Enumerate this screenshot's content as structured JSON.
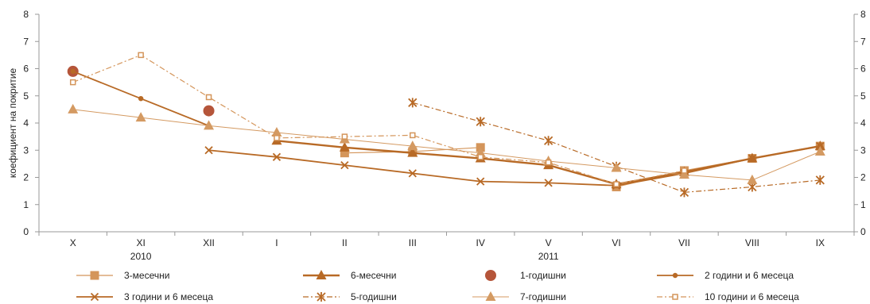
{
  "chart_data": {
    "type": "line",
    "ylabel": "коефициент на покритие",
    "ylim": [
      0,
      8
    ],
    "yticks": [
      "0",
      "1",
      "2",
      "3",
      "4",
      "5",
      "6",
      "7",
      "8"
    ],
    "categories": [
      "X",
      "XI",
      "XII",
      "I",
      "II",
      "III",
      "IV",
      "V",
      "VI",
      "VII",
      "VIII",
      "IX"
    ],
    "year_labels": [
      "2010",
      "2011"
    ],
    "legend_position": "bottom",
    "grid": false,
    "series": [
      {
        "name": "3-месечни",
        "values": [
          null,
          null,
          null,
          null,
          2.9,
          2.95,
          3.1,
          null,
          1.65,
          2.25,
          2.7,
          3.15
        ],
        "color": "#d4955a",
        "marker": "square",
        "line": "solid",
        "lineWidth": 1.2
      },
      {
        "name": "6-месечни",
        "values": [
          null,
          null,
          null,
          3.35,
          3.1,
          2.9,
          2.7,
          2.45,
          1.75,
          2.2,
          2.7,
          3.15
        ],
        "color": "#b86a26",
        "marker": "triangle",
        "line": "solid",
        "lineWidth": 2.4
      },
      {
        "name": "1-годишни",
        "values": [
          5.9,
          null,
          4.45,
          null,
          null,
          null,
          null,
          null,
          null,
          null,
          null,
          null
        ],
        "color": "#b5553a",
        "marker": "bigcircle",
        "line": "none",
        "lineWidth": 0
      },
      {
        "name": "2 години и 6 месеца",
        "values": [
          5.9,
          4.9,
          3.9,
          null,
          null,
          null,
          null,
          null,
          null,
          null,
          null,
          null
        ],
        "color": "#b86a26",
        "marker": "circle",
        "line": "solid",
        "lineWidth": 1.8
      },
      {
        "name": "3 години и 6 месеца",
        "values": [
          null,
          null,
          3.0,
          2.75,
          2.45,
          2.15,
          1.85,
          1.8,
          1.7,
          2.15,
          2.7,
          3.15
        ],
        "color": "#b86a26",
        "marker": "x",
        "line": "solid",
        "lineWidth": 1.8
      },
      {
        "name": "5-годишни",
        "values": [
          null,
          null,
          null,
          null,
          null,
          4.75,
          4.05,
          3.35,
          2.4,
          1.45,
          1.65,
          1.9
        ],
        "color": "#b86a26",
        "marker": "asterisk",
        "line": "dashdot",
        "lineWidth": 1.2
      },
      {
        "name": "7-годишни",
        "values": [
          4.5,
          4.2,
          3.9,
          3.65,
          3.4,
          3.15,
          2.9,
          2.6,
          2.35,
          2.1,
          1.9,
          2.95
        ],
        "color": "#d49a62",
        "marker": "triangle",
        "line": "solid",
        "lineWidth": 1.0
      },
      {
        "name": "10 години и 6 месеца",
        "values": [
          5.5,
          6.5,
          4.95,
          3.45,
          3.5,
          3.55,
          2.75,
          2.55,
          1.75,
          2.25,
          null,
          null
        ],
        "color": "#d4955a",
        "marker": "smallsquare",
        "line": "dashdot",
        "lineWidth": 1.2
      }
    ]
  }
}
